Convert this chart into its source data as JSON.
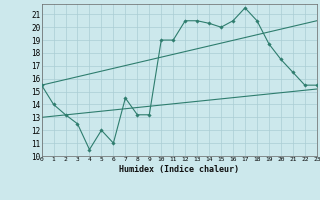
{
  "line1_x": [
    0,
    1,
    2,
    3,
    4,
    5,
    6,
    7,
    8,
    9,
    10,
    11,
    12,
    13,
    14,
    15,
    16,
    17,
    18,
    19,
    20,
    21,
    22,
    23
  ],
  "line1_y": [
    15.5,
    14.0,
    13.2,
    12.5,
    10.5,
    12.0,
    11.0,
    14.5,
    13.2,
    13.2,
    19.0,
    19.0,
    20.5,
    20.5,
    20.3,
    20.0,
    20.5,
    21.5,
    20.5,
    18.7,
    17.5,
    16.5,
    15.5,
    15.5
  ],
  "line2_x": [
    0,
    23
  ],
  "line2_y": [
    15.5,
    20.5
  ],
  "line3_x": [
    0,
    23
  ],
  "line3_y": [
    13.0,
    15.2
  ],
  "line_color": "#2e7d6e",
  "bg_color": "#cce8ec",
  "grid_color": "#aacdd4",
  "xlabel": "Humidex (Indice chaleur)",
  "xlim": [
    0,
    23
  ],
  "ylim": [
    10,
    21.8
  ],
  "yticks": [
    10,
    11,
    12,
    13,
    14,
    15,
    16,
    17,
    18,
    19,
    20,
    21
  ],
  "xticks": [
    0,
    1,
    2,
    3,
    4,
    5,
    6,
    7,
    8,
    9,
    10,
    11,
    12,
    13,
    14,
    15,
    16,
    17,
    18,
    19,
    20,
    21,
    22,
    23
  ]
}
